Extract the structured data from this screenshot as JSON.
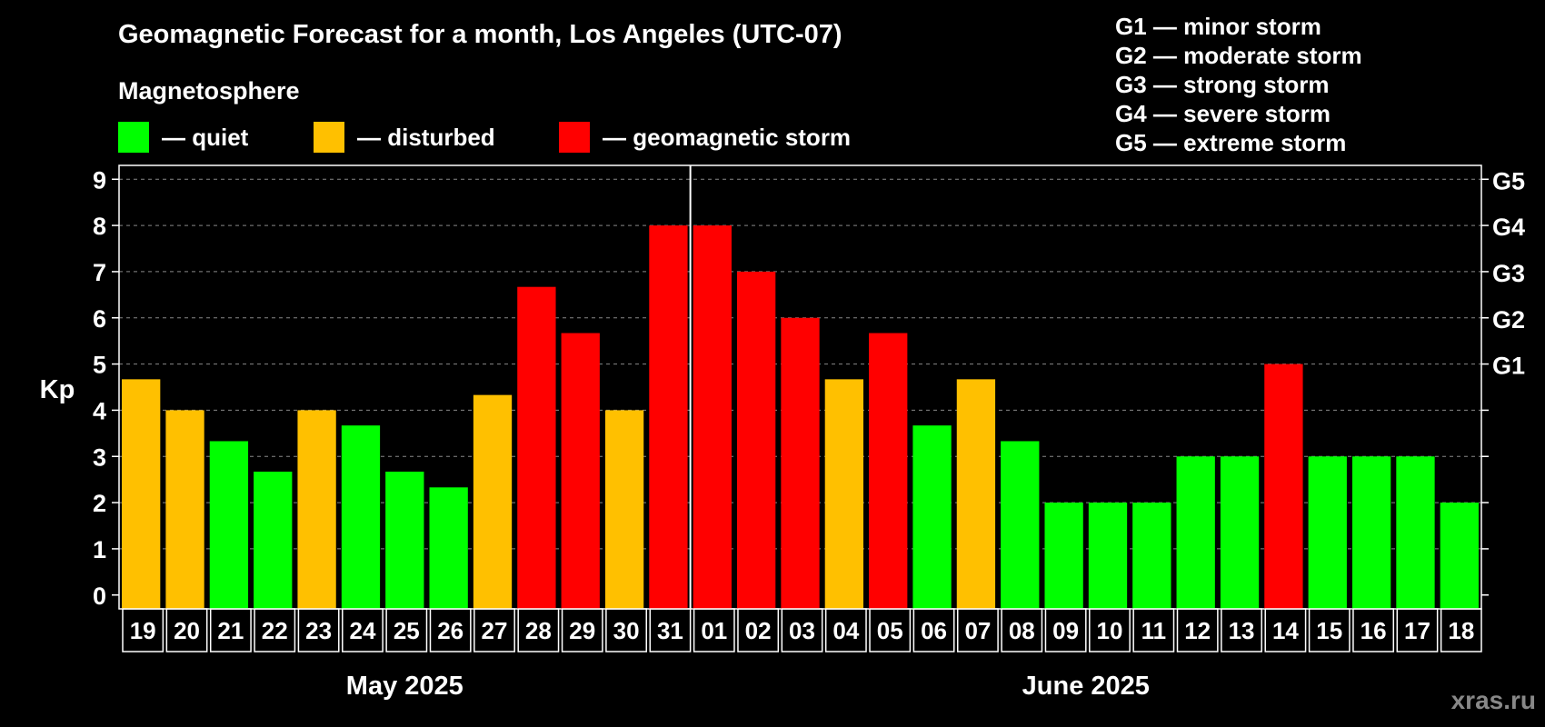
{
  "title": "Geomagnetic Forecast for a month, Los Angeles (UTC-07)",
  "subtitle": "Magnetosphere",
  "legend": [
    {
      "label": "— quiet",
      "color": "#00ff00"
    },
    {
      "label": "— disturbed",
      "color": "#ffc000"
    },
    {
      "label": "— geomagnetic storm",
      "color": "#ff0000"
    }
  ],
  "storm_levels": [
    "G1 — minor storm",
    "G2 — moderate storm",
    "G3 — strong storm",
    "G4 — severe storm",
    "G5 — extreme storm"
  ],
  "watermark": "xras.ru",
  "colors": {
    "quiet": "#00ff00",
    "disturbed": "#ffc000",
    "storm": "#ff0000",
    "background": "#000000",
    "axis": "#ffffff"
  },
  "chart_data": {
    "type": "bar",
    "ylabel": "Kp",
    "ylim": [
      -0.3,
      9.3
    ],
    "yticks": [
      0,
      1,
      2,
      3,
      4,
      5,
      6,
      7,
      8,
      9
    ],
    "right_axis_labels": [
      {
        "y": 5,
        "label": "G1"
      },
      {
        "y": 6,
        "label": "G2"
      },
      {
        "y": 7,
        "label": "G3"
      },
      {
        "y": 8,
        "label": "G4"
      },
      {
        "y": 9,
        "label": "G5"
      }
    ],
    "grid": "dashed horizontal",
    "months": [
      {
        "label": "May 2025",
        "days": 13
      },
      {
        "label": "June 2025",
        "days": 18
      }
    ],
    "categories": [
      "19",
      "20",
      "21",
      "22",
      "23",
      "24",
      "25",
      "26",
      "27",
      "28",
      "29",
      "30",
      "31",
      "01",
      "02",
      "03",
      "04",
      "05",
      "06",
      "07",
      "08",
      "09",
      "10",
      "11",
      "12",
      "13",
      "14",
      "15",
      "16",
      "17",
      "18"
    ],
    "values": [
      4.67,
      4.0,
      3.33,
      2.67,
      4.0,
      3.67,
      2.67,
      2.33,
      4.33,
      6.67,
      5.67,
      4.0,
      8.0,
      8.0,
      7.0,
      6.0,
      4.67,
      5.67,
      3.67,
      4.67,
      3.33,
      2.0,
      2.0,
      2.0,
      3.0,
      3.0,
      5.0,
      3.0,
      3.0,
      3.0,
      2.0
    ],
    "states": [
      "disturbed",
      "disturbed",
      "quiet",
      "quiet",
      "disturbed",
      "quiet",
      "quiet",
      "quiet",
      "disturbed",
      "storm",
      "storm",
      "disturbed",
      "storm",
      "storm",
      "storm",
      "storm",
      "disturbed",
      "storm",
      "quiet",
      "disturbed",
      "quiet",
      "quiet",
      "quiet",
      "quiet",
      "quiet",
      "quiet",
      "storm",
      "quiet",
      "quiet",
      "quiet",
      "quiet"
    ]
  }
}
